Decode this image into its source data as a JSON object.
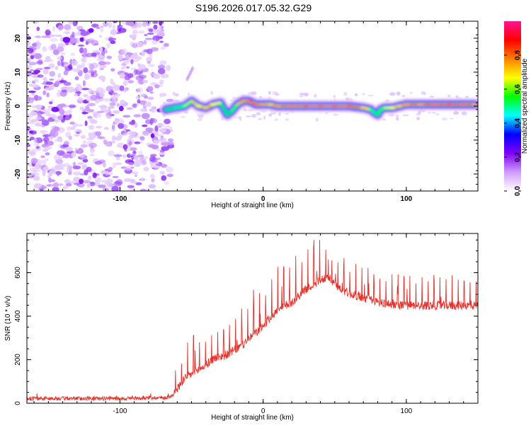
{
  "title": "S196.2026.017.05.32.G29",
  "chart_data": [
    {
      "type": "heatmap",
      "xlabel": "Height of straight line (km)",
      "ylabel": "Frequency (Hz)",
      "xlim": [
        -165,
        150
      ],
      "ylim": [
        -25,
        25
      ],
      "xticks": [
        -100,
        0,
        100
      ],
      "yticks": [
        -20,
        -10,
        0,
        10,
        20
      ],
      "colorbar": {
        "label": "Normalized spectral amplitude",
        "range": [
          0,
          1
        ],
        "ticks": [
          0.0,
          0.2,
          0.4,
          0.6,
          0.8
        ],
        "colors": [
          "#ffffff",
          "#cf9cff",
          "#8000ff",
          "#0000ff",
          "#00ffff",
          "#00ff00",
          "#ffff00",
          "#ff8000",
          "#ff0000",
          "#ff1493"
        ]
      },
      "noise_region": {
        "x_range": [
          -165,
          -70
        ],
        "freq_range": [
          -25,
          25
        ]
      },
      "ridge": {
        "x": [
          -68,
          -62,
          -55,
          -50,
          -45,
          -40,
          -35,
          -30,
          -25,
          -22,
          -18,
          -14,
          -10,
          -5,
          0,
          5,
          10,
          20,
          30,
          40,
          50,
          60,
          70,
          75,
          78,
          80,
          82,
          85,
          90,
          95,
          100,
          110,
          120,
          130,
          140,
          148
        ],
        "freq": [
          -1.0,
          -0.5,
          0.0,
          1.5,
          0.0,
          -0.5,
          0.5,
          1.0,
          -2.5,
          -1.5,
          0.5,
          1.5,
          1.5,
          0.5,
          0.5,
          0.5,
          0.0,
          0.0,
          0.0,
          0.0,
          0.0,
          0.0,
          -0.5,
          -1.0,
          -2.0,
          -2.5,
          -1.0,
          -0.5,
          -0.5,
          0.0,
          0.5,
          0.5,
          0.5,
          0.5,
          0.5,
          0.5
        ],
        "amplitude": [
          0.3,
          0.45,
          0.55,
          0.7,
          0.75,
          0.8,
          0.75,
          0.6,
          0.35,
          0.5,
          0.65,
          0.85,
          0.9,
          0.9,
          0.85,
          0.8,
          0.85,
          0.9,
          1.0,
          1.0,
          1.0,
          0.95,
          0.8,
          0.6,
          0.4,
          0.5,
          0.6,
          0.55,
          0.75,
          0.8,
          0.85,
          0.85,
          0.9,
          0.95,
          0.9,
          0.85
        ]
      }
    },
    {
      "type": "line",
      "xlabel": "Height of straight line (km)",
      "ylabel": "SNR (10 * v/v)",
      "xlim": [
        -165,
        150
      ],
      "ylim": [
        0,
        780
      ],
      "xticks": [
        -100,
        0,
        100
      ],
      "yticks": [
        0,
        200,
        400,
        600
      ],
      "color": "#e8302a",
      "envelope": {
        "x": [
          -165,
          -100,
          -65,
          -60,
          -55,
          -50,
          -45,
          -40,
          -35,
          -30,
          -25,
          -20,
          -15,
          -10,
          -5,
          0,
          5,
          10,
          20,
          30,
          40,
          45,
          50,
          60,
          70,
          80,
          90,
          100,
          110,
          120,
          130,
          140,
          150
        ],
        "base": [
          20,
          20,
          25,
          60,
          110,
          130,
          150,
          170,
          200,
          210,
          220,
          240,
          260,
          290,
          320,
          350,
          390,
          420,
          460,
          520,
          560,
          580,
          540,
          500,
          480,
          460,
          450,
          445,
          445,
          445,
          445,
          445,
          445
        ],
        "peak": [
          40,
          40,
          50,
          210,
          250,
          350,
          320,
          330,
          360,
          380,
          390,
          420,
          460,
          510,
          550,
          520,
          580,
          640,
          690,
          740,
          760,
          730,
          700,
          650,
          640,
          620,
          610,
          600,
          590,
          590,
          590,
          590,
          580
        ]
      }
    }
  ]
}
